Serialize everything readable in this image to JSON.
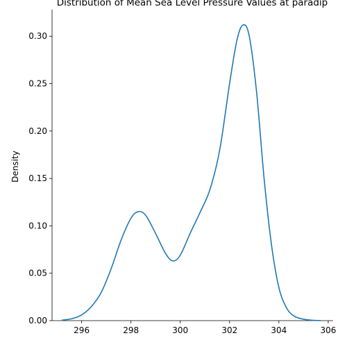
{
  "chart_data": {
    "type": "line",
    "title": "Distribution of Mean Sea Level Pressure Values at paradip",
    "xlabel": "",
    "ylabel": "Density",
    "xlim": [
      294.8,
      306.2
    ],
    "ylim": [
      0,
      0.328
    ],
    "x_ticks": [
      296,
      298,
      300,
      302,
      304,
      306
    ],
    "x_tick_labels": [
      "296",
      "298",
      "300",
      "302",
      "304",
      "306"
    ],
    "y_ticks": [
      0,
      0.05,
      0.1,
      0.15,
      0.2,
      0.25,
      0.3
    ],
    "y_tick_labels": [
      "0.00",
      "0.05",
      "0.10",
      "0.15",
      "0.20",
      "0.25",
      "0.30"
    ],
    "grid": false,
    "series": [
      {
        "color": "#1f77b4",
        "x": [
          295.2,
          295.6,
          296.0,
          296.4,
          296.8,
          297.2,
          297.6,
          298.0,
          298.3,
          298.6,
          299.0,
          299.4,
          299.7,
          300.0,
          300.4,
          300.8,
          301.2,
          301.6,
          302.0,
          302.3,
          302.55,
          302.8,
          303.1,
          303.4,
          303.7,
          304.0,
          304.3,
          304.6,
          305.0,
          305.4,
          305.7
        ],
        "y": [
          0.0005,
          0.002,
          0.006,
          0.015,
          0.03,
          0.055,
          0.085,
          0.108,
          0.115,
          0.111,
          0.092,
          0.071,
          0.063,
          0.069,
          0.092,
          0.114,
          0.138,
          0.18,
          0.25,
          0.296,
          0.312,
          0.3,
          0.24,
          0.15,
          0.08,
          0.035,
          0.014,
          0.005,
          0.0015,
          0.0003,
          0.0001
        ]
      }
    ]
  }
}
